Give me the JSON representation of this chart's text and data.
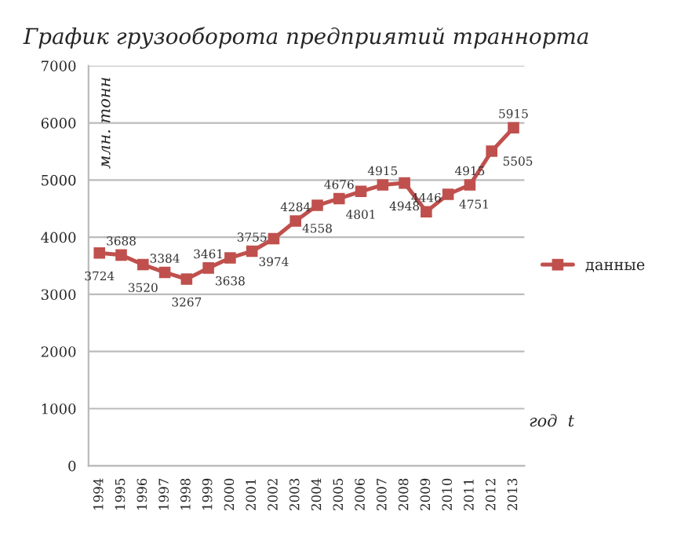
{
  "chart_data": {
    "type": "line",
    "title": "График грузооборота предприятий траннорта",
    "xlabel": "год  t",
    "ylabel": "млн. тонн",
    "categories": [
      "1994",
      "1995",
      "1996",
      "1997",
      "1998",
      "1999",
      "2000",
      "2001",
      "2002",
      "2003",
      "2004",
      "2005",
      "2006",
      "2007",
      "2008",
      "2009",
      "2010",
      "2011",
      "2012",
      "2013"
    ],
    "series": [
      {
        "name": "данные",
        "color": "#c0504d",
        "values": [
          3724,
          3688,
          3520,
          3384,
          3267,
          3461,
          3638,
          3755,
          3974,
          4284,
          4558,
          4676,
          4801,
          4915,
          4948,
          4446,
          4751,
          4915,
          5505,
          5915
        ]
      }
    ],
    "ylim": [
      0,
      7000
    ],
    "yticks": [
      0,
      1000,
      2000,
      3000,
      4000,
      5000,
      6000,
      7000
    ],
    "grid": "y",
    "legend": "right",
    "marker": "square",
    "line_style": "solid",
    "data_labels": true
  }
}
